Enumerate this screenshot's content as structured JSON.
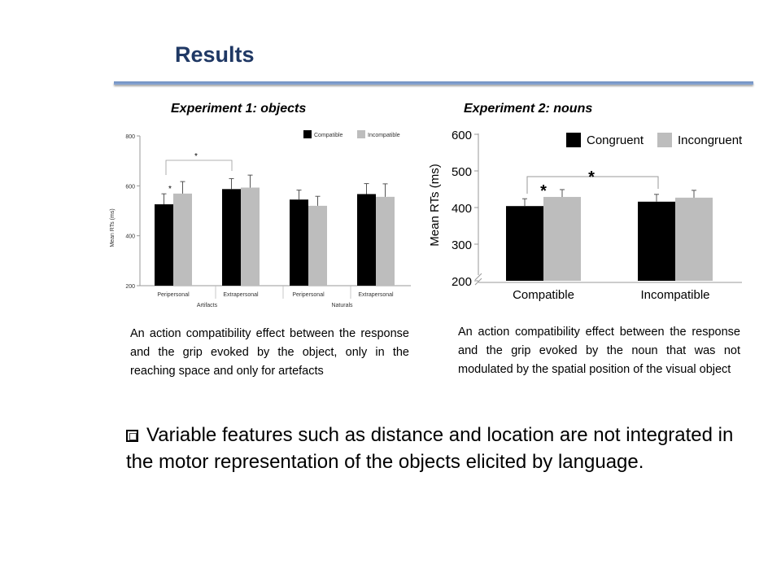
{
  "title": "Results",
  "exp1": {
    "heading": "Experiment  1: objects",
    "description": "An action compatibility effect between the response and the grip evoked by the object, only in the reaching space and only for artefacts"
  },
  "exp2": {
    "heading": "Experiment  2: nouns",
    "description": "An action compatibility effect between the response and the grip evoked by the noun that was not modulated by the spatial position of the visual object"
  },
  "bullet": "Variable features such as distance and location are not integrated in the motor representation of the objects elicited by language.",
  "chart_data": [
    {
      "type": "bar",
      "ylabel": "Mean RTs (ms)",
      "ylim": [
        200,
        800
      ],
      "yticks": [
        200,
        400,
        600,
        800
      ],
      "categories": [
        "Peripersonal",
        "Extrapersonal",
        "Peripersonal",
        "Extrapersonal"
      ],
      "groups": [
        {
          "label": "Artifacts"
        },
        {
          "label": "Naturals"
        }
      ],
      "series": [
        {
          "name": "Compatible",
          "color": "#000000",
          "values": [
            526,
            587,
            545,
            567
          ],
          "errors": [
            42,
            42,
            38,
            42
          ]
        },
        {
          "name": "Incompatible",
          "color": "#bdbdbd",
          "values": [
            569,
            593,
            520,
            556
          ],
          "errors": [
            48,
            50,
            38,
            52
          ]
        }
      ],
      "annotations": [
        "*",
        "*"
      ],
      "legend": "top-right"
    },
    {
      "type": "bar",
      "ylabel": "Mean RTs (ms)",
      "ylim": [
        200,
        600
      ],
      "yticks": [
        200,
        300,
        400,
        500,
        600
      ],
      "categories": [
        "Compatible",
        "Incompatible"
      ],
      "series": [
        {
          "name": "Congruent",
          "color": "#000000",
          "values": [
            404,
            416
          ],
          "errors": [
            20,
            20
          ]
        },
        {
          "name": "Incongruent",
          "color": "#bdbdbd",
          "values": [
            429,
            427
          ],
          "errors": [
            20,
            20
          ]
        }
      ],
      "annotations": [
        "*",
        "*"
      ],
      "legend": "top-right"
    }
  ]
}
